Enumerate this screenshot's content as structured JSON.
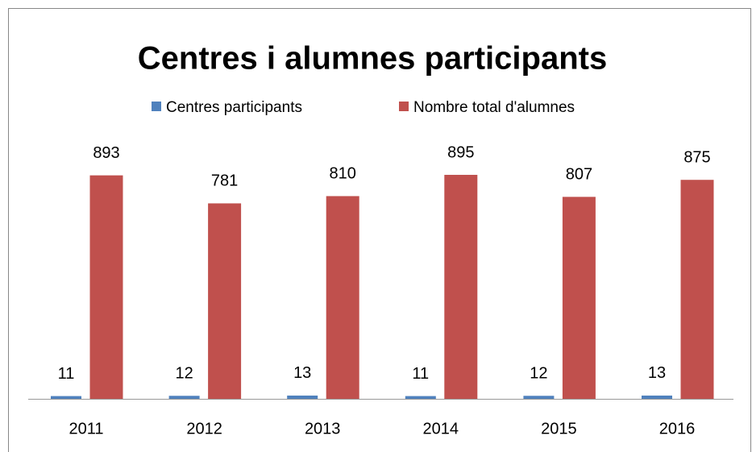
{
  "chart_data": {
    "type": "bar",
    "title": "Centres i alumnes participants",
    "categories": [
      "2011",
      "2012",
      "2013",
      "2014",
      "2015",
      "2016"
    ],
    "series": [
      {
        "name": "Centres participants",
        "color": "#4f81bd",
        "values": [
          11,
          12,
          13,
          11,
          12,
          13
        ]
      },
      {
        "name": "Nombre total d'alumnes",
        "color": "#c0504d",
        "values": [
          893,
          781,
          810,
          895,
          807,
          875
        ]
      }
    ],
    "legend": "top"
  }
}
